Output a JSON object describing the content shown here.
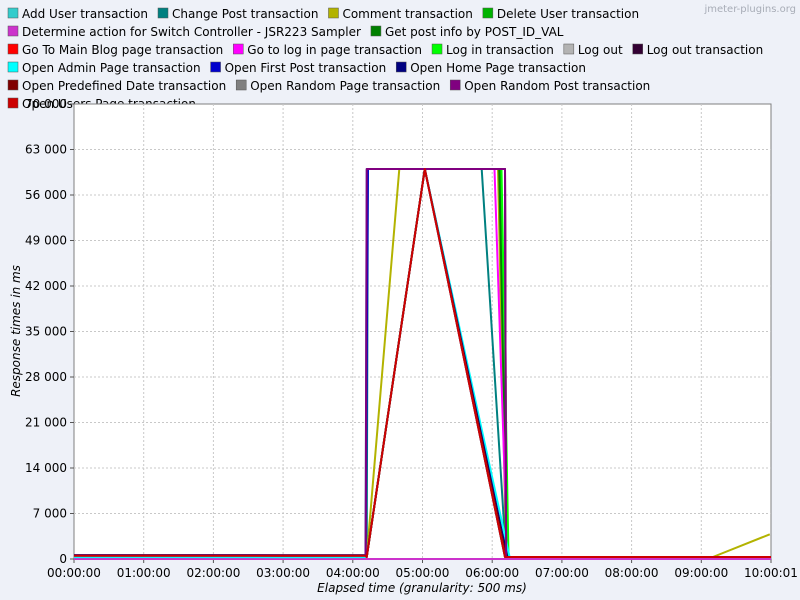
{
  "watermark": "jmeter-plugins.org",
  "chart_data": {
    "type": "line",
    "xlabel": "Elapsed time (granularity: 500 ms)",
    "ylabel": "Response times in ms",
    "ylim": [
      0,
      70000
    ],
    "yticks": [
      "0",
      "7 000",
      "14 000",
      "21 000",
      "28 000",
      "35 000",
      "42 000",
      "49 000",
      "56 000",
      "63 000",
      "70 000"
    ],
    "xticks": [
      "00:00:00",
      "01:00:00",
      "02:00:00",
      "03:00:00",
      "04:00:00",
      "05:00:00",
      "06:00:00",
      "07:00:00",
      "08:00:00",
      "09:00:00",
      "10:00:01"
    ],
    "x_unit": "minutes",
    "xlim": [
      0,
      600
    ],
    "grid": true,
    "legend_position": "top",
    "series": [
      {
        "name": "Add User transaction",
        "color": "#33cccc",
        "x": [
          0,
          30,
          60,
          120,
          180,
          240,
          251,
          252,
          302,
          371,
          372,
          380,
          480,
          600
        ],
        "y": [
          500,
          520,
          480,
          500,
          510,
          500,
          500,
          60000,
          60000,
          60000,
          300,
          300,
          300,
          300
        ]
      },
      {
        "name": "Change Post transaction",
        "color": "#008080",
        "x": [
          0,
          60,
          120,
          180,
          251,
          252,
          253,
          302,
          351,
          372,
          400,
          500,
          600
        ],
        "y": [
          450,
          470,
          460,
          450,
          450,
          300,
          60000,
          60000,
          60000,
          300,
          300,
          300,
          300
        ]
      },
      {
        "name": "Comment transaction",
        "color": "#b3b300",
        "x": [
          0,
          60,
          120,
          180,
          251,
          252,
          280,
          302,
          365,
          372,
          450,
          550,
          599
        ],
        "y": [
          420,
          430,
          420,
          410,
          420,
          300,
          60000,
          60000,
          60000,
          300,
          300,
          300,
          3800
        ]
      },
      {
        "name": "Delete User transaction",
        "color": "#00b300",
        "x": [
          0,
          60,
          120,
          180,
          251,
          252,
          302,
          367,
          372,
          450,
          600
        ],
        "y": [
          400,
          410,
          400,
          400,
          400,
          400,
          60000,
          60000,
          300,
          300,
          300
        ]
      },
      {
        "name": "Determine action for Switch Controller - JSR223 Sampler",
        "color": "#cc33cc",
        "x": [
          0,
          60,
          120,
          180,
          251,
          252,
          302,
          352,
          371,
          372,
          450,
          600
        ],
        "y": [
          0,
          0,
          0,
          0,
          0,
          0,
          0,
          0,
          0,
          0,
          0,
          0
        ]
      },
      {
        "name": "Get post info by POST_ID_VAL",
        "color": "#008000",
        "x": [
          0,
          60,
          120,
          180,
          251,
          252,
          302,
          366,
          373,
          450,
          600
        ],
        "y": [
          380,
          390,
          380,
          370,
          380,
          300,
          60000,
          60000,
          300,
          300,
          300
        ]
      },
      {
        "name": "Go To Main Blog page transaction",
        "color": "#ff0000",
        "x": [
          0,
          60,
          120,
          180,
          251,
          252,
          302,
          371,
          372,
          450,
          600
        ],
        "y": [
          360,
          370,
          360,
          350,
          360,
          300,
          60000,
          60000,
          300,
          300,
          300
        ]
      },
      {
        "name": "Go to log in page transaction",
        "color": "#ff00ff",
        "x": [
          0,
          60,
          120,
          180,
          251,
          252,
          302,
          362,
          373,
          450,
          600
        ],
        "y": [
          340,
          350,
          340,
          340,
          340,
          300,
          60000,
          60000,
          300,
          300,
          300
        ]
      },
      {
        "name": "Log in transaction",
        "color": "#00ff00",
        "x": [
          0,
          60,
          120,
          180,
          251,
          252,
          302,
          368,
          374,
          450,
          600
        ],
        "y": [
          330,
          340,
          330,
          320,
          330,
          300,
          60000,
          60000,
          300,
          300,
          300
        ]
      },
      {
        "name": "Log out",
        "color": "#b3b3b3",
        "x": [
          0,
          60,
          120,
          180,
          251,
          252,
          302,
          371,
          372,
          450,
          600
        ],
        "y": [
          310,
          320,
          310,
          300,
          310,
          300,
          60000,
          60000,
          300,
          300,
          300
        ]
      },
      {
        "name": "Log out transaction",
        "color": "#330033",
        "x": [
          0,
          60,
          120,
          180,
          251,
          252,
          302,
          371,
          372,
          450,
          600
        ],
        "y": [
          300,
          310,
          300,
          300,
          300,
          300,
          60000,
          60000,
          300,
          300,
          300
        ]
      },
      {
        "name": "Open Admin Page transaction",
        "color": "#00ffff",
        "x": [
          0,
          60,
          120,
          180,
          251,
          252,
          302,
          375,
          450,
          600
        ],
        "y": [
          290,
          300,
          290,
          280,
          290,
          300,
          60000,
          300,
          300,
          300
        ]
      },
      {
        "name": "Open First Post transaction",
        "color": "#0000cc",
        "x": [
          0,
          60,
          120,
          180,
          251,
          253,
          302,
          371,
          450,
          600
        ],
        "y": [
          600,
          620,
          600,
          590,
          600,
          60000,
          60000,
          300,
          300,
          300
        ]
      },
      {
        "name": "Open Home Page transaction",
        "color": "#000080",
        "x": [
          0,
          60,
          120,
          180,
          251,
          252,
          302,
          373,
          450,
          600
        ],
        "y": [
          580,
          590,
          580,
          570,
          580,
          300,
          60000,
          300,
          300,
          300
        ]
      },
      {
        "name": "Open Predefined Date transaction",
        "color": "#800000",
        "x": [
          0,
          60,
          120,
          180,
          251,
          252,
          302,
          372,
          450,
          600
        ],
        "y": [
          560,
          570,
          560,
          550,
          560,
          300,
          60000,
          300,
          300,
          300
        ]
      },
      {
        "name": "Open Random Page transaction",
        "color": "#808080",
        "x": [
          0,
          60,
          120,
          180,
          251,
          252,
          302,
          371,
          450,
          600
        ],
        "y": [
          540,
          550,
          540,
          530,
          540,
          300,
          60000,
          300,
          300,
          300
        ]
      },
      {
        "name": "Open Random Post transaction",
        "color": "#800080",
        "x": [
          0,
          60,
          120,
          180,
          251,
          252,
          302,
          371,
          372,
          450,
          600
        ],
        "y": [
          520,
          530,
          520,
          510,
          520,
          60000,
          60000,
          60000,
          300,
          300,
          300
        ]
      },
      {
        "name": "Open Users Page transaction",
        "color": "#cc0000",
        "x": [
          0,
          60,
          120,
          180,
          251,
          252,
          302,
          371,
          372,
          450,
          600
        ],
        "y": [
          500,
          510,
          500,
          490,
          500,
          300,
          60000,
          300,
          300,
          300,
          300
        ]
      }
    ]
  }
}
